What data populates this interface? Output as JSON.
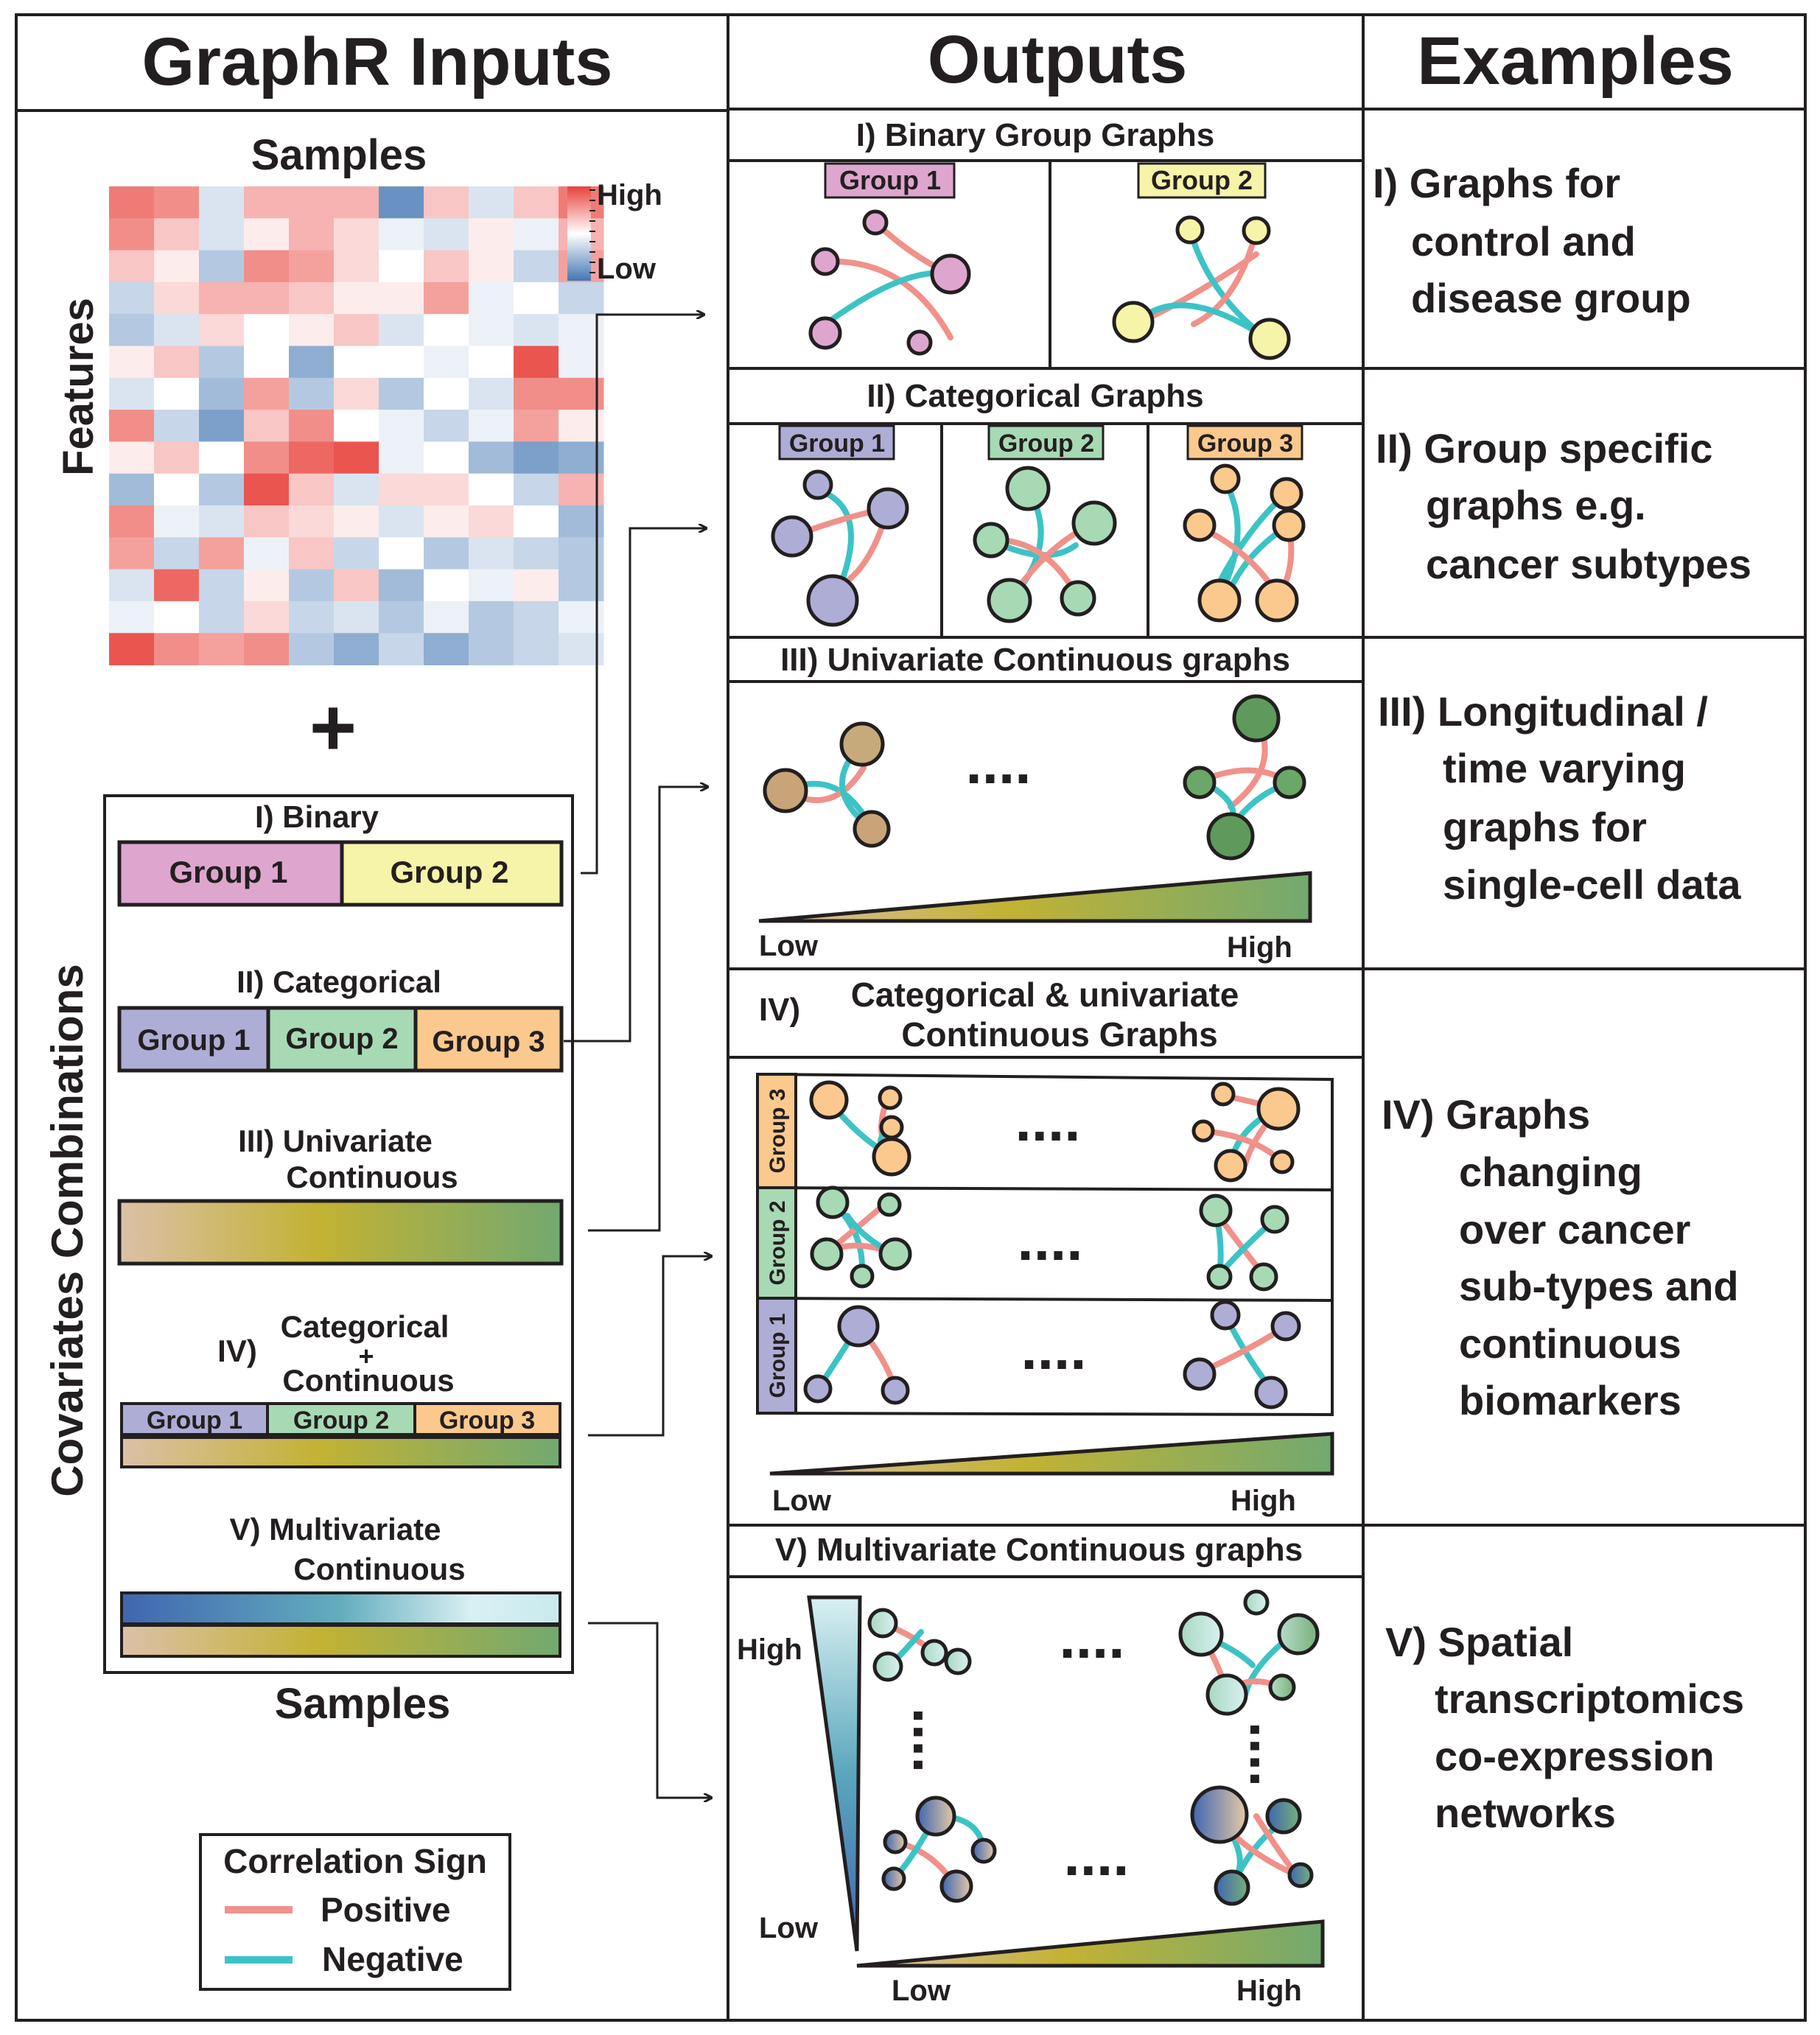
{
  "headers": {
    "inputs": "GraphR Inputs",
    "outputs": "Outputs",
    "examples": "Examples"
  },
  "inputs": {
    "samples_top": "Samples",
    "features": "Features",
    "legend_high": "High",
    "legend_low": "Low",
    "plus": "+",
    "covariates_title": "Covariates Combinations",
    "samples_bottom": "Samples",
    "binary": {
      "title": "I) Binary",
      "group1": "Group 1",
      "group2": "Group 2"
    },
    "categorical": {
      "title": "II) Categorical",
      "group1": "Group 1",
      "group2": "Group 2",
      "group3": "Group 3"
    },
    "univariate": {
      "title_line1": "III) Univariate",
      "title_line2": "Continuous"
    },
    "cat_cont": {
      "prefix": "IV)",
      "line1": "Categorical",
      "line2": "+",
      "line3": "Continuous",
      "group1": "Group 1",
      "group2": "Group 2",
      "group3": "Group 3"
    },
    "multivariate": {
      "title_line1": "V) Multivariate",
      "title_line2": "Continuous"
    }
  },
  "correlation_legend": {
    "title": "Correlation Sign",
    "positive": "Positive",
    "negative": "Negative",
    "positive_color": "#f0918a",
    "negative_color": "#3cc3c6"
  },
  "outputs": {
    "binary": {
      "title": "I) Binary Group Graphs",
      "group1": "Group 1",
      "group2": "Group 2"
    },
    "categorical": {
      "title": "II) Categorical  Graphs",
      "group1": "Group 1",
      "group2": "Group 2",
      "group3": "Group 3"
    },
    "univariate": {
      "title": "III) Univariate Continuous graphs",
      "dots": "....",
      "low": "Low",
      "high": "High"
    },
    "cat_cont": {
      "prefix": "IV)",
      "line1": "Categorical & univariate",
      "line2": "Continuous Graphs",
      "row3": "Group 3",
      "row2": "Group 2",
      "row1": "Group 1",
      "dots": "....",
      "low": "Low",
      "high": "High"
    },
    "multivariate": {
      "title": "V) Multivariate Continuous graphs",
      "dots": "....",
      "vdots": "....",
      "high_v": "High",
      "low_v": "Low",
      "low_h": "Low",
      "high_h": "High"
    }
  },
  "examples": {
    "ex1": [
      "I) Graphs for",
      "control and",
      "disease group"
    ],
    "ex2": [
      "II) Group specific",
      "graphs e.g.",
      "cancer subtypes"
    ],
    "ex3": [
      "III) Longitudinal /",
      "time varying",
      "graphs for",
      "single-cell data"
    ],
    "ex4": [
      "IV) Graphs",
      "changing",
      "over cancer",
      "sub-types and",
      "continuous",
      "biomarkers"
    ],
    "ex5": [
      "V) Spatial",
      "transcriptomics",
      "co-expression",
      "networks"
    ]
  },
  "colors": {
    "group1": "#aeadd6",
    "group2": "#a7d9b4",
    "group3": "#fbc98d",
    "binary_group1": "#dea6cf",
    "binary_group2": "#f6f4a8",
    "heat_high": "#e8423c",
    "heat_low": "#4477b3",
    "gradient_low": "#dcc0a8",
    "gradient_mid": "#c3b233",
    "gradient_high": "#72a970",
    "multi_blue": "#3f66b0",
    "multi_light": "#d9f0f2"
  },
  "heatmap_values": [
    [
      0.7,
      0.6,
      -0.2,
      0.4,
      0.4,
      0.4,
      -0.8,
      0.3,
      -0.2,
      0.3,
      0.7
    ],
    [
      0.6,
      0.3,
      -0.2,
      0.1,
      0.4,
      0.2,
      -0.1,
      -0.2,
      0.1,
      -0.1,
      0.4
    ],
    [
      0.3,
      0.1,
      -0.4,
      0.6,
      0.5,
      0.2,
      0.0,
      0.3,
      0.1,
      -0.3,
      0.5
    ],
    [
      -0.3,
      0.2,
      0.4,
      0.4,
      0.3,
      0.1,
      0.1,
      0.5,
      -0.1,
      0.0,
      -0.3
    ],
    [
      -0.4,
      -0.2,
      0.2,
      0.0,
      0.1,
      0.3,
      -0.2,
      0.0,
      -0.1,
      -0.2,
      -0.1
    ],
    [
      0.1,
      0.3,
      -0.4,
      0.0,
      -0.6,
      0.0,
      0.0,
      -0.1,
      0.0,
      0.9,
      -0.1
    ],
    [
      -0.2,
      0.0,
      -0.5,
      0.5,
      -0.4,
      0.2,
      -0.4,
      0.0,
      -0.2,
      0.6,
      0.6
    ],
    [
      0.6,
      -0.3,
      -0.7,
      0.3,
      0.6,
      0.0,
      -0.1,
      -0.3,
      -0.1,
      0.5,
      0.1
    ],
    [
      0.1,
      0.3,
      0.0,
      0.6,
      0.8,
      0.9,
      -0.1,
      0.0,
      -0.5,
      -0.7,
      -0.6
    ],
    [
      -0.5,
      0.0,
      -0.4,
      0.9,
      0.3,
      -0.2,
      0.2,
      0.2,
      0.0,
      -0.3,
      0.4
    ],
    [
      0.6,
      -0.1,
      -0.2,
      0.3,
      0.2,
      0.1,
      -0.2,
      0.1,
      0.2,
      0.0,
      -0.5
    ],
    [
      0.5,
      -0.3,
      0.5,
      -0.1,
      0.3,
      -0.3,
      0.0,
      -0.4,
      -0.2,
      -0.3,
      -0.4
    ],
    [
      -0.2,
      0.8,
      -0.3,
      0.1,
      -0.4,
      0.3,
      -0.5,
      0.0,
      -0.1,
      0.1,
      -0.4
    ],
    [
      -0.1,
      0.0,
      -0.3,
      0.2,
      -0.3,
      -0.2,
      -0.4,
      -0.1,
      -0.4,
      -0.3,
      -0.1
    ],
    [
      0.9,
      0.6,
      0.5,
      0.6,
      -0.4,
      -0.6,
      -0.3,
      -0.6,
      -0.4,
      -0.3,
      -0.2
    ]
  ]
}
